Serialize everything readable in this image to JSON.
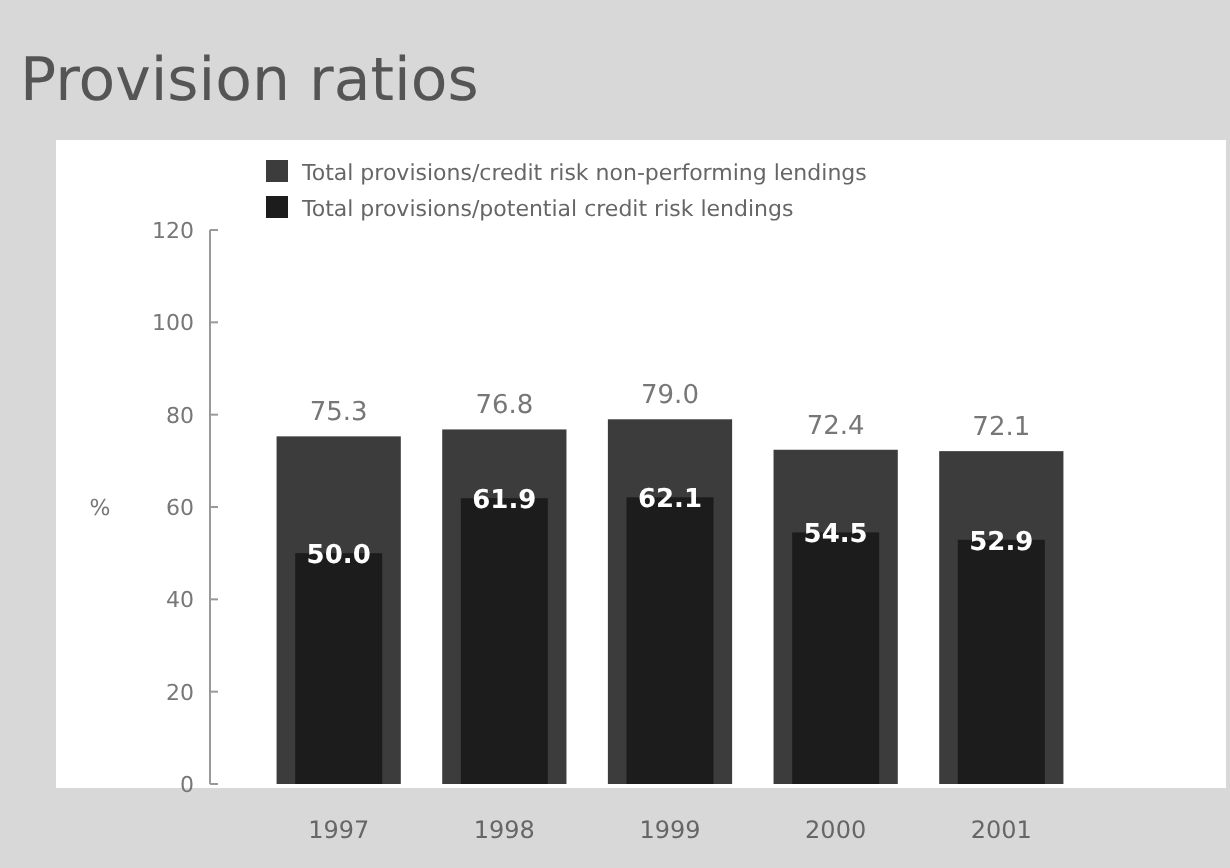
{
  "chart_data": {
    "type": "bar",
    "title": "Provision ratios",
    "ylabel": "%",
    "categories": [
      "1997",
      "1998",
      "1999",
      "2000",
      "2001"
    ],
    "series": [
      {
        "name": "Total provisions/credit risk non-performing lendings",
        "color": "#3c3c3c",
        "values": [
          75.3,
          76.8,
          79.0,
          72.4,
          72.1
        ],
        "value_labels": [
          "75.3",
          "76.8",
          "79.0",
          "72.4",
          "72.1"
        ]
      },
      {
        "name": "Total provisions/potential credit risk lendings",
        "color": "#1c1c1c",
        "values": [
          50.0,
          61.9,
          62.1,
          54.5,
          52.9
        ],
        "value_labels": [
          "50.0",
          "61.9",
          "62.1",
          "54.5",
          "52.9"
        ]
      }
    ],
    "ylim": [
      0,
      120
    ],
    "yticks": [
      0,
      20,
      40,
      60,
      80,
      100,
      120
    ],
    "legend": "top left",
    "grid": false
  }
}
